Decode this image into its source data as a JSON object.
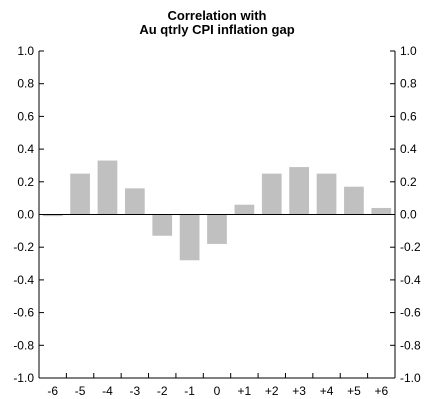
{
  "chart_data": {
    "type": "bar",
    "title_lines": [
      "Correlation with",
      "Au qtrly CPI inflation gap"
    ],
    "categories": [
      "-6",
      "-5",
      "-4",
      "-3",
      "-2",
      "-1",
      "0",
      "+1",
      "+2",
      "+3",
      "+4",
      "+5",
      "+6"
    ],
    "values": [
      -0.01,
      0.25,
      0.33,
      0.16,
      -0.13,
      -0.28,
      -0.18,
      0.06,
      0.25,
      0.29,
      0.25,
      0.17,
      0.04
    ],
    "ylim": [
      -1.0,
      1.0
    ],
    "yticks": [
      "1.0",
      "0.8",
      "0.6",
      "0.4",
      "0.2",
      "0.0",
      "-0.2",
      "-0.4",
      "-0.6",
      "-0.8",
      "-1.0"
    ],
    "bar_color": "#c0c0c0",
    "axis_color": "#000000",
    "grid": false,
    "legend": "none"
  }
}
